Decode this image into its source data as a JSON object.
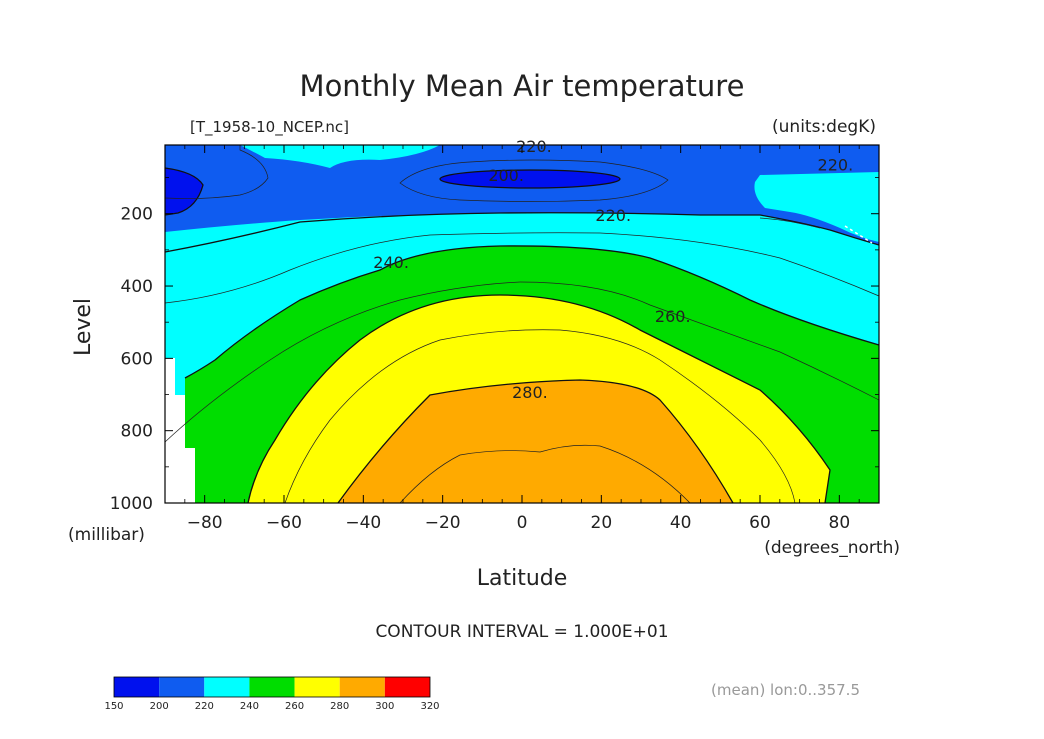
{
  "chart_data": {
    "type": "heatmap",
    "title": "Monthly Mean Air temperature",
    "file_label": "[T_1958-10_NCEP.nc]",
    "units_label": "(units:degK)",
    "xlabel": "Latitude",
    "ylabel": "Level",
    "x_units": "(degrees_north)",
    "y_units": "(millibar)",
    "xlim": [
      -90,
      90
    ],
    "ylim": [
      1000,
      10
    ],
    "x_ticks": [
      -80,
      -60,
      -40,
      -20,
      0,
      20,
      40,
      60,
      80
    ],
    "x_tick_labels": [
      "−80",
      "−60",
      "−40",
      "−20",
      "0",
      "20",
      "40",
      "60",
      "80"
    ],
    "y_ticks": [
      200,
      400,
      600,
      800,
      1000
    ],
    "y_tick_labels": [
      "200",
      "400",
      "600",
      "800",
      "1000"
    ],
    "contour_labels": [
      {
        "text": "220.",
        "lat": 3,
        "level": 30
      },
      {
        "text": "200.",
        "lat": -4,
        "level": 110
      },
      {
        "text": "220.",
        "lat": 79,
        "level": 80
      },
      {
        "text": "220.",
        "lat": 23,
        "level": 220
      },
      {
        "text": "240.",
        "lat": -33,
        "level": 350
      },
      {
        "text": "260.",
        "lat": 38,
        "level": 500
      },
      {
        "text": "280.",
        "lat": 2,
        "level": 710
      }
    ],
    "levels": [
      150,
      200,
      220,
      240,
      260,
      280,
      300,
      320
    ],
    "contour_interval": "CONTOUR INTERVAL = 1.000E+01",
    "colorbar": {
      "colors": [
        "#0011ee",
        "#0f5cf0",
        "#00ffff",
        "#00dd00",
        "#ffff00",
        "#ffaa00",
        "#ff0000"
      ],
      "labels": [
        "150",
        "200",
        "220",
        "240",
        "260",
        "280",
        "300",
        "320"
      ]
    },
    "footer_label": "(mean) lon:0..357.5",
    "grid": false,
    "legend": "colorbar bottom-left"
  }
}
